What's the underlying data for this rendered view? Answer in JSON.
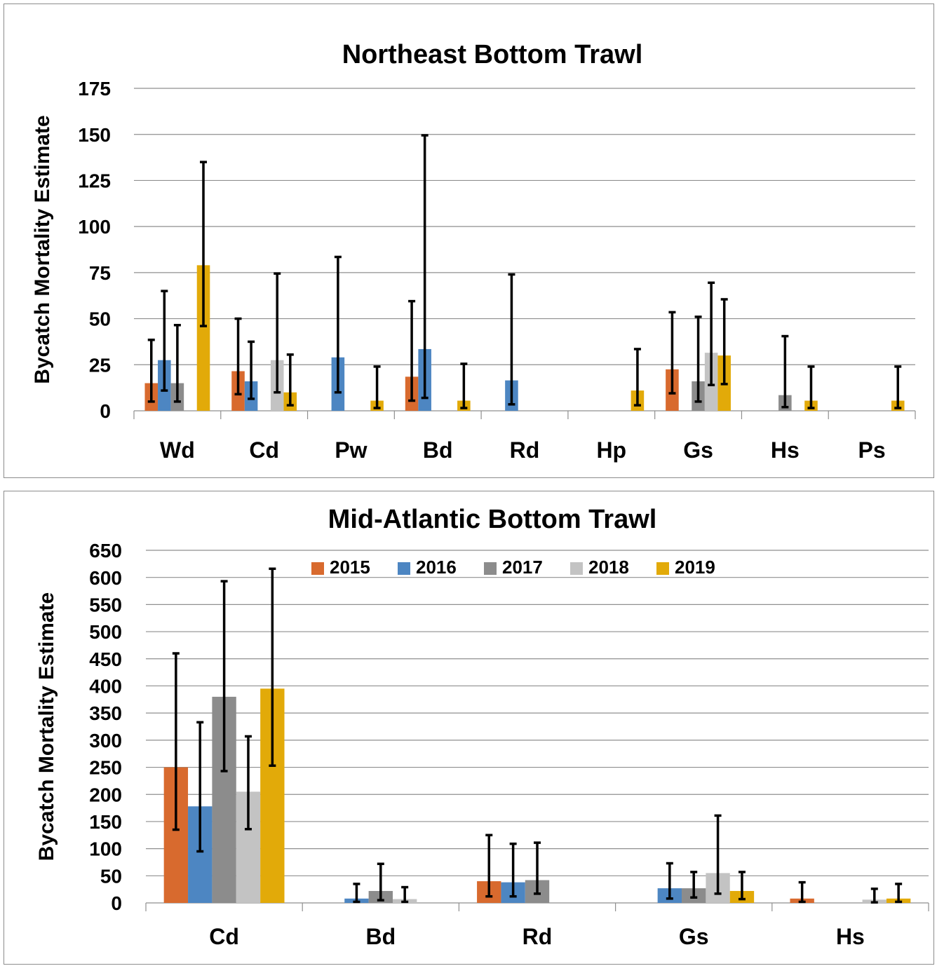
{
  "colors": {
    "2015": "#d86a2e",
    "2016": "#4d86c2",
    "2017": "#8c8c8c",
    "2018": "#c3c3c3",
    "2019": "#e2aa09",
    "grid": "#8f8f8f",
    "error_bar": "#000000"
  },
  "chart_data": [
    {
      "type": "bar",
      "title": "Northeast Bottom Trawl",
      "ylabel": "Bycatch Mortality Estimate",
      "xlabel": "",
      "ylim": [
        0,
        175
      ],
      "yticks": [
        0,
        25,
        50,
        75,
        100,
        125,
        150,
        175
      ],
      "grid": true,
      "legend": "none",
      "categories": [
        "Wd",
        "Cd",
        "Pw",
        "Bd",
        "Rd",
        "Hp",
        "Gs",
        "Hs",
        "Ps"
      ],
      "series": [
        {
          "name": "2015",
          "values": [
            15,
            21.5,
            0,
            18.5,
            0,
            0,
            22.5,
            0,
            0
          ],
          "err_low": [
            5,
            9,
            0,
            5.5,
            0,
            0,
            9.5,
            0,
            0
          ],
          "err_high": [
            38.5,
            50,
            0,
            59.5,
            0,
            0,
            53.5,
            0,
            0
          ]
        },
        {
          "name": "2016",
          "values": [
            27.5,
            16,
            29,
            33.5,
            16.5,
            0,
            0,
            0,
            0
          ],
          "err_low": [
            11,
            6.5,
            10,
            7,
            3.5,
            0,
            0,
            0,
            0
          ],
          "err_high": [
            65,
            37.5,
            83.5,
            149.5,
            74,
            0,
            0,
            0,
            0
          ]
        },
        {
          "name": "2017",
          "values": [
            15,
            0,
            0,
            0,
            0,
            0,
            16,
            8.5,
            0
          ],
          "err_low": [
            5,
            0,
            0,
            0,
            0,
            0,
            5,
            2,
            0
          ],
          "err_high": [
            46.5,
            0,
            0,
            0,
            0,
            0,
            51,
            40.5,
            0
          ]
        },
        {
          "name": "2018",
          "values": [
            0,
            27.5,
            0,
            0,
            0,
            0,
            31.5,
            0,
            0
          ],
          "err_low": [
            0,
            10,
            0,
            0,
            0,
            0,
            14,
            0,
            0
          ],
          "err_high": [
            0,
            74.5,
            0,
            0,
            0,
            0,
            69.5,
            0,
            0
          ]
        },
        {
          "name": "2019",
          "values": [
            79,
            10,
            5.5,
            5.5,
            0,
            11,
            30,
            5.5,
            5.5
          ],
          "err_low": [
            46,
            3,
            1.5,
            1.5,
            0,
            3,
            14.5,
            1.5,
            1.5
          ],
          "err_high": [
            135,
            30.5,
            24,
            25.5,
            0,
            33.5,
            60.5,
            24,
            24
          ]
        }
      ]
    },
    {
      "type": "bar",
      "title": "Mid-Atlantic Bottom Trawl",
      "ylabel": "Bycatch Mortality Estimate",
      "xlabel": "",
      "ylim": [
        0,
        650
      ],
      "yticks": [
        0,
        50,
        100,
        150,
        200,
        250,
        300,
        350,
        400,
        450,
        500,
        550,
        600,
        650
      ],
      "grid": true,
      "legend": "top",
      "categories": [
        "Cd",
        "Bd",
        "Rd",
        "Gs",
        "Hs"
      ],
      "series": [
        {
          "name": "2015",
          "values": [
            250,
            0,
            40,
            0,
            8
          ],
          "err_low": [
            135,
            0,
            12,
            0,
            2
          ],
          "err_high": [
            460,
            0,
            125,
            0,
            38
          ]
        },
        {
          "name": "2016",
          "values": [
            178,
            8,
            38,
            27,
            0
          ],
          "err_low": [
            95,
            2,
            12,
            8,
            0
          ],
          "err_high": [
            333,
            35,
            109,
            73,
            0
          ]
        },
        {
          "name": "2017",
          "values": [
            380,
            22,
            42,
            27,
            0
          ],
          "err_low": [
            243,
            5,
            17,
            10,
            0
          ],
          "err_high": [
            593,
            72,
            111,
            57,
            0
          ]
        },
        {
          "name": "2018",
          "values": [
            205,
            7,
            0,
            55,
            6
          ],
          "err_low": [
            136,
            2,
            0,
            17,
            1
          ],
          "err_high": [
            307,
            29,
            0,
            161,
            26
          ]
        },
        {
          "name": "2019",
          "values": [
            395,
            0,
            0,
            22,
            8
          ],
          "err_low": [
            253,
            0,
            0,
            7,
            2
          ],
          "err_high": [
            616,
            0,
            0,
            57,
            35
          ]
        }
      ]
    }
  ]
}
